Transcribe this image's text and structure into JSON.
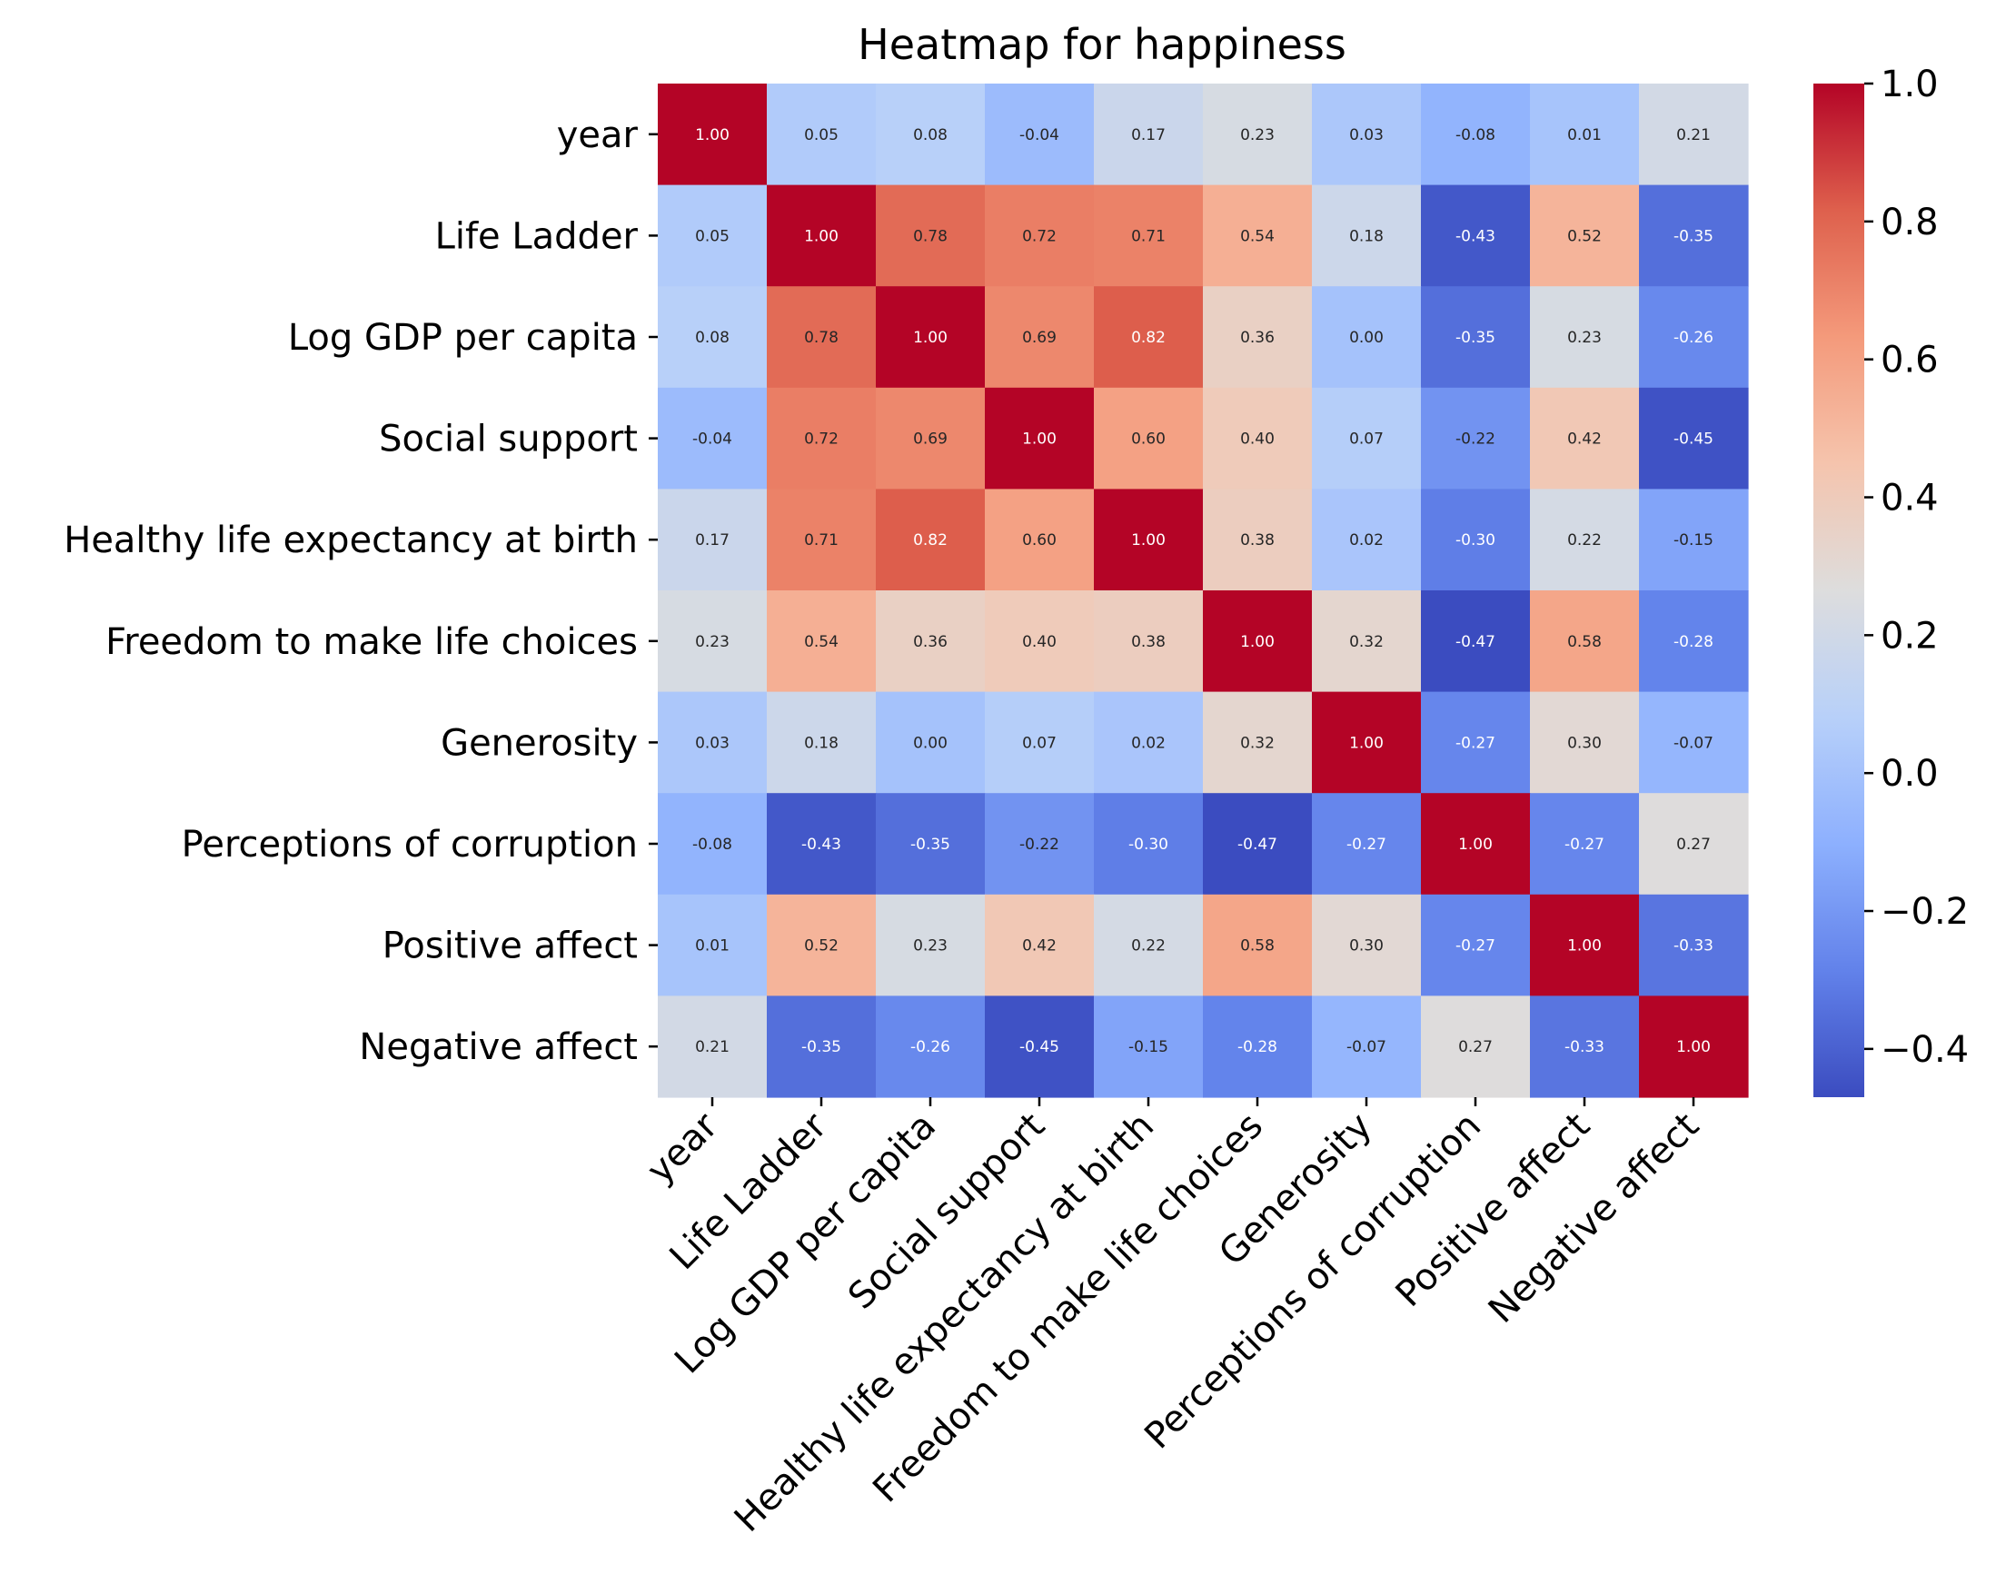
{
  "chart_data": {
    "type": "heatmap",
    "title": "Heatmap for happiness",
    "xlabel": "",
    "ylabel": "",
    "colormap": "coolwarm",
    "categories": [
      "year",
      "Life Ladder",
      "Log GDP per capita",
      "Social support",
      "Healthy life expectancy at birth",
      "Freedom to make life choices",
      "Generosity",
      "Perceptions of corruption",
      "Positive affect",
      "Negative affect"
    ],
    "values": [
      [
        1.0,
        0.05,
        0.08,
        -0.04,
        0.17,
        0.23,
        0.03,
        -0.08,
        0.01,
        0.21
      ],
      [
        0.05,
        1.0,
        0.78,
        0.72,
        0.71,
        0.54,
        0.18,
        -0.43,
        0.52,
        -0.35
      ],
      [
        0.08,
        0.78,
        1.0,
        0.69,
        0.82,
        0.36,
        -0.0,
        -0.35,
        0.23,
        -0.26
      ],
      [
        -0.04,
        0.72,
        0.69,
        1.0,
        0.6,
        0.4,
        0.07,
        -0.22,
        0.42,
        -0.45
      ],
      [
        0.17,
        0.71,
        0.82,
        0.6,
        1.0,
        0.38,
        0.02,
        -0.3,
        0.22,
        -0.15
      ],
      [
        0.23,
        0.54,
        0.36,
        0.4,
        0.38,
        1.0,
        0.32,
        -0.47,
        0.58,
        -0.28
      ],
      [
        0.03,
        0.18,
        -0.0,
        0.07,
        0.02,
        0.32,
        1.0,
        -0.27,
        0.3,
        -0.07
      ],
      [
        -0.08,
        -0.43,
        -0.35,
        -0.22,
        -0.3,
        -0.47,
        -0.27,
        1.0,
        -0.27,
        0.27
      ],
      [
        0.01,
        0.52,
        0.23,
        0.42,
        0.22,
        0.58,
        0.3,
        -0.27,
        1.0,
        -0.33
      ],
      [
        0.21,
        -0.35,
        -0.26,
        -0.45,
        -0.15,
        -0.28,
        -0.07,
        0.27,
        -0.33,
        1.0
      ]
    ],
    "vmin": -0.47,
    "vmax": 1.0,
    "colorbar_ticks": [
      1.0,
      0.8,
      0.6,
      0.4,
      0.2,
      0.0,
      -0.2,
      -0.4
    ],
    "colorbar_tick_labels": [
      "1.0",
      "0.8",
      "0.6",
      "0.4",
      "0.2",
      "0.0",
      "−0.2",
      "−0.4"
    ],
    "legend": "colorbar-right",
    "grid": false
  }
}
